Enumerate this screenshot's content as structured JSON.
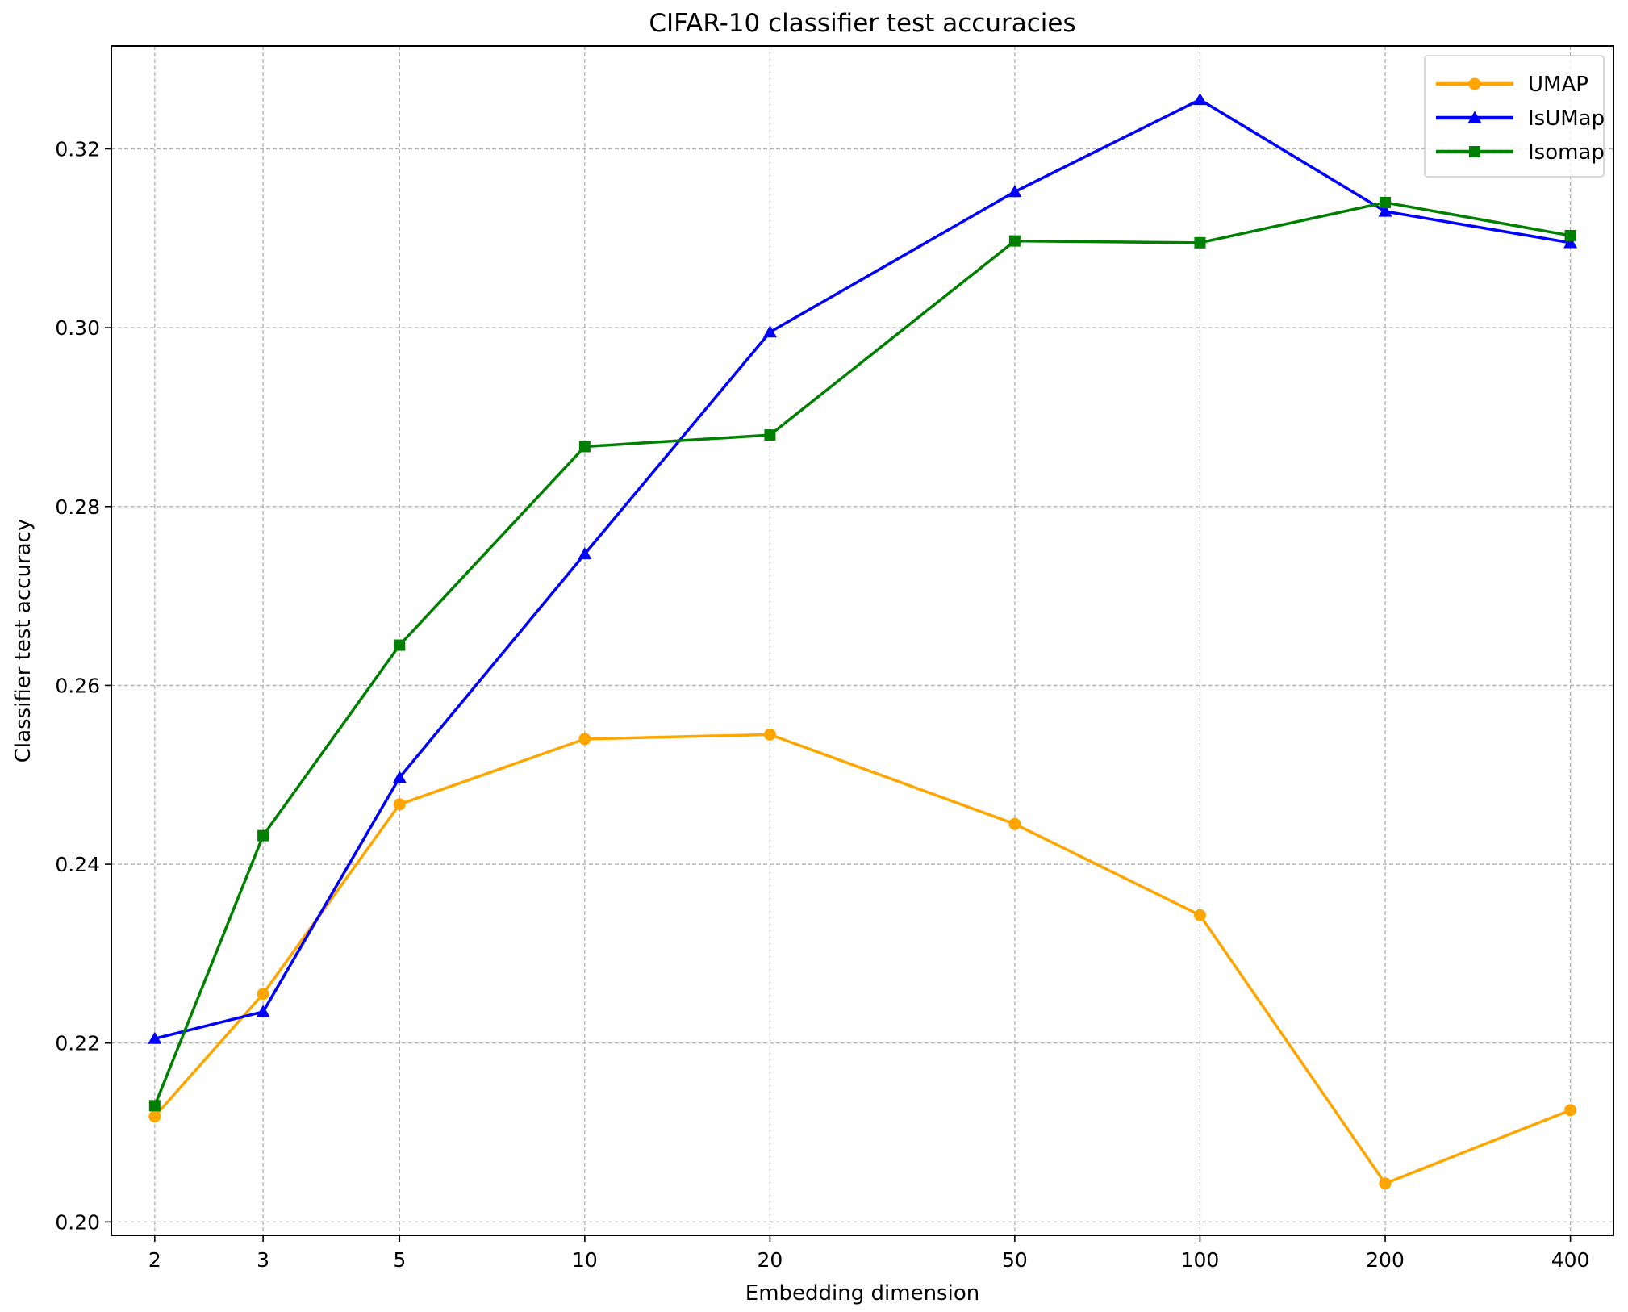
{
  "chart_data": {
    "type": "line",
    "title": "CIFAR-10 classifier test accuracies",
    "xlabel": "Embedding dimension",
    "ylabel": "Classifier test accuracy",
    "x_scale": "log",
    "x": [
      2,
      3,
      5,
      10,
      20,
      50,
      100,
      200,
      400
    ],
    "x_tick_labels": [
      "2",
      "3",
      "5",
      "10",
      "20",
      "50",
      "100",
      "200",
      "400"
    ],
    "xlim": [
      1.7,
      470
    ],
    "ylim": [
      0.1985,
      0.3315
    ],
    "y_ticks": [
      0.2,
      0.22,
      0.24,
      0.26,
      0.28,
      0.3,
      0.32
    ],
    "y_tick_labels": [
      "0.20",
      "0.22",
      "0.24",
      "0.26",
      "0.28",
      "0.30",
      "0.32"
    ],
    "grid": true,
    "legend_position": "top-right",
    "series": [
      {
        "name": "UMAP",
        "color": "#ffa500",
        "marker": "circle",
        "values": [
          0.2118,
          0.2255,
          0.2467,
          0.254,
          0.2545,
          0.2445,
          0.2343,
          0.2043,
          0.2125
        ]
      },
      {
        "name": "IsUMap",
        "color": "#0000ff",
        "marker": "triangle",
        "values": [
          0.2205,
          0.2235,
          0.2497,
          0.2747,
          0.2995,
          0.3152,
          0.3255,
          0.313,
          0.3095
        ]
      },
      {
        "name": "Isomap",
        "color": "#008000",
        "marker": "square",
        "values": [
          0.213,
          0.2432,
          0.2645,
          0.2867,
          0.288,
          0.3097,
          0.3095,
          0.314,
          0.3103
        ]
      }
    ]
  }
}
